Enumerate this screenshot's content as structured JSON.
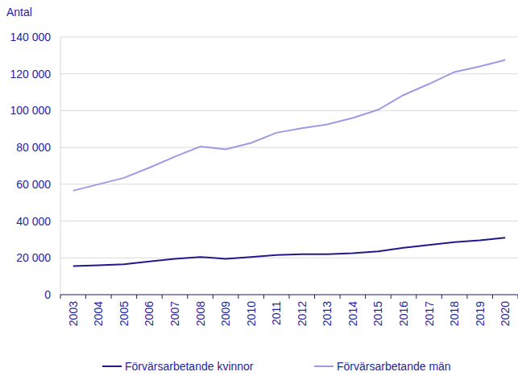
{
  "chart_data": {
    "type": "line",
    "y_label": "Antal",
    "categories": [
      "2003",
      "2004",
      "2005",
      "2006",
      "2007",
      "2008",
      "2009",
      "2010",
      "2011",
      "2012",
      "2013",
      "2014",
      "2015",
      "2016",
      "2017",
      "2018",
      "2019",
      "2020"
    ],
    "series": [
      {
        "name": "Förvärsarbetande kvinnor",
        "color": "#1f1a8c",
        "values": [
          15500,
          16000,
          16500,
          18000,
          19500,
          20500,
          19500,
          20500,
          21500,
          22000,
          22000,
          22500,
          23500,
          25500,
          27000,
          28500,
          29500,
          31000
        ]
      },
      {
        "name": "Förvärsarbetande män",
        "color": "#9c9ce6",
        "values": [
          56500,
          60000,
          63500,
          69000,
          75000,
          80500,
          79000,
          82500,
          88000,
          90500,
          92500,
          96000,
          100500,
          108500,
          114500,
          121000,
          124000,
          127500
        ]
      }
    ],
    "ylim": [
      0,
      140000
    ],
    "yticks": [
      0,
      {
        "value": 20000,
        "label": "20 000"
      },
      {
        "value": 40000,
        "label": "40 000"
      },
      {
        "value": 60000,
        "label": "60 000"
      },
      {
        "value": 80000,
        "label": "80 000"
      },
      {
        "value": 100000,
        "label": "100 000"
      },
      {
        "value": 120000,
        "label": "120 000"
      },
      {
        "value": 140000,
        "label": "140 000"
      }
    ],
    "grid": true,
    "legend": "bottom"
  }
}
